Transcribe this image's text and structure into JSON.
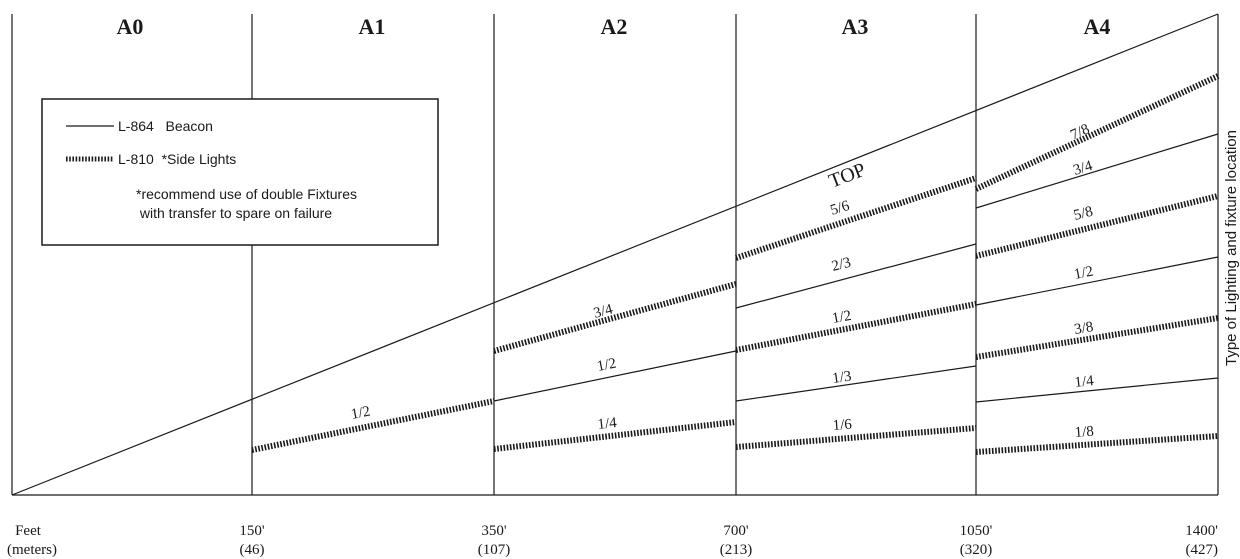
{
  "zones": [
    {
      "label": "A0"
    },
    {
      "label": "A1"
    },
    {
      "label": "A2"
    },
    {
      "label": "A3"
    },
    {
      "label": "A4"
    }
  ],
  "legend": {
    "beacon_label": "L-864   Beacon",
    "side_lights_label": "L-810  *Side Lights",
    "note_line1": "*recommend use of double Fixtures",
    "note_line2": " with transfer to spare on failure"
  },
  "top_label": "TOP",
  "right_axis_label": "Type of Lighting and fixture location",
  "x_axis": {
    "unit_feet": "Feet",
    "unit_meters": "(meters)",
    "ticks": [
      {
        "feet": "150'",
        "meters": "(46)"
      },
      {
        "feet": "350'",
        "meters": "(107)"
      },
      {
        "feet": "700'",
        "meters": "(213)"
      },
      {
        "feet": "1050'",
        "meters": "(320)"
      },
      {
        "feet": "1400'",
        "meters": "(427)"
      }
    ]
  },
  "fixture_labels": {
    "a1": [
      "1/2"
    ],
    "a2": [
      "3/4",
      "1/2",
      "1/4"
    ],
    "a3": [
      "5/6",
      "2/3",
      "1/2",
      "1/3",
      "1/6"
    ],
    "a4": [
      "7/8",
      "3/4",
      "5/8",
      "1/2",
      "3/8",
      "1/4",
      "1/8"
    ]
  },
  "colors": {
    "line": "#1a1a1a",
    "background": "#ffffff"
  }
}
